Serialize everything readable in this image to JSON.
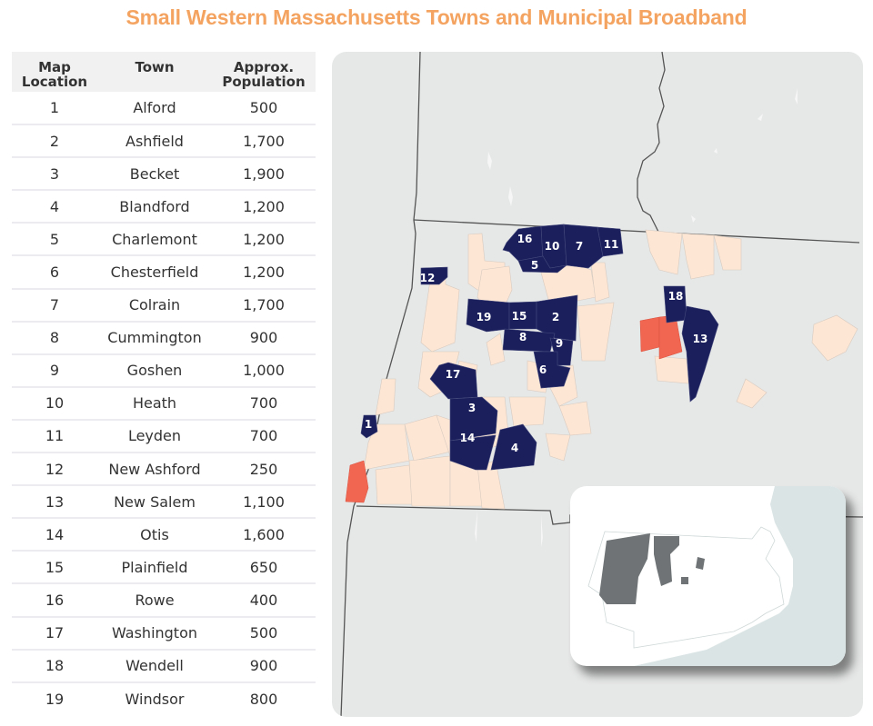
{
  "title": "Small Western Massachusetts Towns and Municipal Broadband",
  "table": {
    "headers": {
      "location_line1": "Map",
      "location_line2": "Location",
      "town": "Town",
      "pop_line1": "Approx.",
      "pop_line2": "Population"
    },
    "rows": [
      {
        "loc": "1",
        "town": "Alford",
        "pop": "500"
      },
      {
        "loc": "2",
        "town": "Ashfield",
        "pop": "1,700"
      },
      {
        "loc": "3",
        "town": "Becket",
        "pop": "1,900"
      },
      {
        "loc": "4",
        "town": "Blandford",
        "pop": "1,200"
      },
      {
        "loc": "5",
        "town": "Charlemont",
        "pop": "1,200"
      },
      {
        "loc": "6",
        "town": "Chesterfield",
        "pop": "1,200"
      },
      {
        "loc": "7",
        "town": "Colrain",
        "pop": "1,700"
      },
      {
        "loc": "8",
        "town": "Cummington",
        "pop": "900"
      },
      {
        "loc": "9",
        "town": "Goshen",
        "pop": "1,000"
      },
      {
        "loc": "10",
        "town": "Heath",
        "pop": "700"
      },
      {
        "loc": "11",
        "town": "Leyden",
        "pop": "700"
      },
      {
        "loc": "12",
        "town": "New Ashford",
        "pop": "250"
      },
      {
        "loc": "13",
        "town": "New Salem",
        "pop": "1,100"
      },
      {
        "loc": "14",
        "town": "Otis",
        "pop": "1,600"
      },
      {
        "loc": "15",
        "town": "Plainfield",
        "pop": "650"
      },
      {
        "loc": "16",
        "town": "Rowe",
        "pop": "400"
      },
      {
        "loc": "17",
        "town": "Washington",
        "pop": "500"
      },
      {
        "loc": "18",
        "town": "Wendell",
        "pop": "900"
      },
      {
        "loc": "19",
        "town": "Windsor",
        "pop": "800"
      }
    ]
  },
  "map": {
    "labels": [
      "1",
      "2",
      "3",
      "4",
      "5",
      "6",
      "7",
      "8",
      "9",
      "10",
      "11",
      "12",
      "13",
      "14",
      "15",
      "16",
      "17",
      "18",
      "19"
    ],
    "colors": {
      "highlight": "#1b1f5c",
      "other_small": "#fde6d4",
      "accent": "#f06650",
      "background": "#e6e7e7",
      "inset_shape": "#6f7375",
      "inset_water": "#dae4e4"
    }
  }
}
